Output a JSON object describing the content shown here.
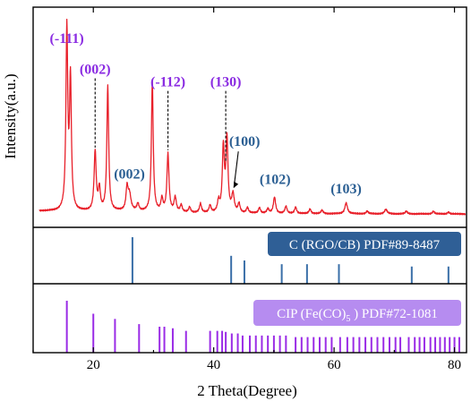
{
  "chart_data": {
    "type": "line",
    "xlabel": "2 Theta(Degree)",
    "ylabel": "Intensity(a.u.)",
    "xlim": [
      10,
      82
    ],
    "x_ticks": [
      20,
      40,
      60,
      80
    ],
    "grid": false,
    "colors": {
      "pattern": "#e8202a",
      "label_purple": "#8a2be2",
      "label_blue": "#2b5f93",
      "c_ref_bar": "#3a6fa8",
      "cip_ref_bar": "#9a2be6",
      "c_legend_bg": "#2f5f96",
      "cip_legend_bg": "#b68cf0"
    },
    "pattern_peaks": [
      {
        "x": 15.6,
        "h": 1.0,
        "w": 0.18
      },
      {
        "x": 16.2,
        "h": 0.72,
        "w": 0.18
      },
      {
        "x": 20.3,
        "h": 0.33,
        "w": 0.2
      },
      {
        "x": 21.0,
        "h": 0.12,
        "w": 0.2
      },
      {
        "x": 22.4,
        "h": 0.69,
        "w": 0.18
      },
      {
        "x": 25.6,
        "h": 0.12,
        "w": 0.2
      },
      {
        "x": 26.0,
        "h": 0.09,
        "w": 0.3
      },
      {
        "x": 27.4,
        "h": 0.04,
        "w": 0.2
      },
      {
        "x": 29.8,
        "h": 0.72,
        "w": 0.18
      },
      {
        "x": 31.4,
        "h": 0.07,
        "w": 0.2
      },
      {
        "x": 32.4,
        "h": 0.32,
        "w": 0.2
      },
      {
        "x": 33.6,
        "h": 0.08,
        "w": 0.22
      },
      {
        "x": 34.6,
        "h": 0.04,
        "w": 0.2
      },
      {
        "x": 36.0,
        "h": 0.03,
        "w": 0.2
      },
      {
        "x": 37.8,
        "h": 0.05,
        "w": 0.2
      },
      {
        "x": 39.4,
        "h": 0.04,
        "w": 0.2
      },
      {
        "x": 40.8,
        "h": 0.06,
        "w": 0.2
      },
      {
        "x": 41.6,
        "h": 0.36,
        "w": 0.2
      },
      {
        "x": 42.2,
        "h": 0.4,
        "w": 0.2
      },
      {
        "x": 43.2,
        "h": 0.1,
        "w": 0.25
      },
      {
        "x": 44.2,
        "h": 0.05,
        "w": 0.2
      },
      {
        "x": 45.6,
        "h": 0.03,
        "w": 0.2
      },
      {
        "x": 47.6,
        "h": 0.03,
        "w": 0.2
      },
      {
        "x": 49.0,
        "h": 0.025,
        "w": 0.2
      },
      {
        "x": 50.1,
        "h": 0.09,
        "w": 0.22
      },
      {
        "x": 52.0,
        "h": 0.04,
        "w": 0.2
      },
      {
        "x": 53.6,
        "h": 0.035,
        "w": 0.2
      },
      {
        "x": 56.0,
        "h": 0.025,
        "w": 0.2
      },
      {
        "x": 58.0,
        "h": 0.02,
        "w": 0.2
      },
      {
        "x": 62.0,
        "h": 0.06,
        "w": 0.25
      },
      {
        "x": 65.5,
        "h": 0.015,
        "w": 0.2
      },
      {
        "x": 68.6,
        "h": 0.025,
        "w": 0.25
      },
      {
        "x": 72.0,
        "h": 0.015,
        "w": 0.2
      },
      {
        "x": 76.5,
        "h": 0.015,
        "w": 0.2
      },
      {
        "x": 79.0,
        "h": 0.01,
        "w": 0.2
      }
    ],
    "peak_labels": [
      {
        "text": "(-111)",
        "x": 15.6,
        "color": "purple",
        "style": "direct",
        "label_y": 0.95
      },
      {
        "text": "(002)",
        "x": 20.3,
        "color": "purple",
        "style": "dashed",
        "label_y": 0.78
      },
      {
        "text": "(-112)",
        "x": 32.4,
        "color": "purple",
        "style": "dashed",
        "label_y": 0.71
      },
      {
        "text": "(130)",
        "x": 42.0,
        "color": "purple",
        "style": "dashed",
        "label_y": 0.71
      },
      {
        "text": "(002)",
        "x": 26.0,
        "color": "blue",
        "style": "direct",
        "label_y": 0.2
      },
      {
        "text": "(100)",
        "x": 43.2,
        "color": "blue",
        "style": "arrow",
        "label_y": 0.38
      },
      {
        "text": "(102)",
        "x": 50.2,
        "color": "blue",
        "style": "direct",
        "label_y": 0.17
      },
      {
        "text": "(103)",
        "x": 62.0,
        "color": "blue",
        "style": "direct",
        "label_y": 0.12
      }
    ],
    "reference_c": {
      "label": "C (RGO/CB) PDF#89-8487",
      "positions": [
        26.5,
        42.9,
        45.1,
        51.3,
        55.5,
        60.8,
        72.9,
        79.0
      ],
      "heights": [
        1.0,
        0.6,
        0.5,
        0.42,
        0.42,
        0.42,
        0.37,
        0.37
      ]
    },
    "reference_cip": {
      "label_prefix": "CIP (Fe(CO)",
      "label_sub": "5",
      "label_suffix": " ) PDF#72-1081",
      "positions": [
        15.6,
        20.0,
        23.6,
        27.6,
        31.0,
        31.8,
        33.2,
        35.4,
        39.4,
        40.6,
        41.4,
        42.0,
        43.0,
        44.0,
        44.8,
        46.0,
        47.0,
        48.0,
        49.0,
        50.0,
        51.0,
        52.0,
        53.6,
        54.6,
        55.6,
        56.6,
        57.6,
        58.6,
        59.6,
        61.0,
        62.2,
        63.2,
        64.2,
        65.2,
        66.2,
        67.2,
        68.2,
        69.2,
        70.2,
        71.0,
        72.4,
        73.4,
        74.2,
        75.0,
        76.0,
        76.8,
        77.6,
        78.4,
        79.2,
        80.0,
        80.8
      ],
      "heights": [
        1.0,
        0.75,
        0.65,
        0.55,
        0.5,
        0.5,
        0.47,
        0.42,
        0.42,
        0.42,
        0.42,
        0.4,
        0.37,
        0.37,
        0.33,
        0.33,
        0.33,
        0.33,
        0.33,
        0.33,
        0.33,
        0.33,
        0.3,
        0.3,
        0.3,
        0.3,
        0.3,
        0.3,
        0.3,
        0.3,
        0.3,
        0.3,
        0.3,
        0.3,
        0.3,
        0.3,
        0.3,
        0.3,
        0.3,
        0.3,
        0.3,
        0.3,
        0.3,
        0.3,
        0.3,
        0.3,
        0.3,
        0.3,
        0.3,
        0.3,
        0.3
      ]
    }
  }
}
